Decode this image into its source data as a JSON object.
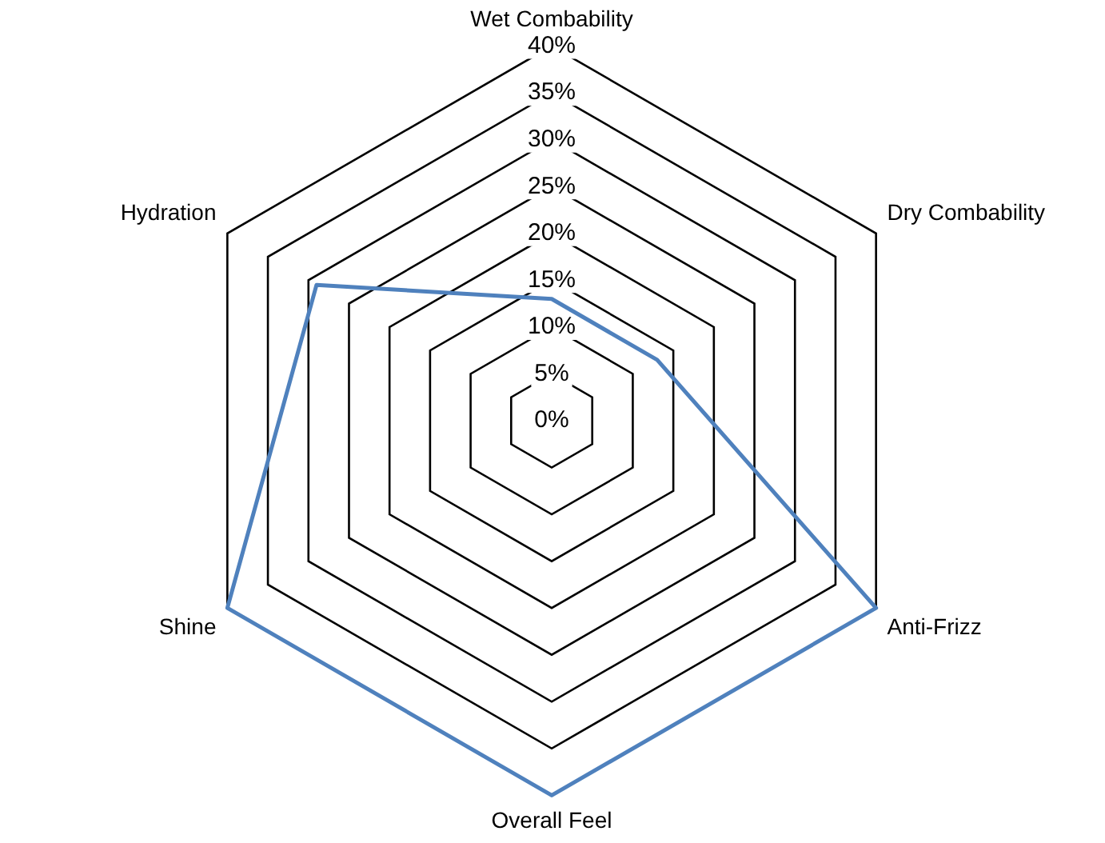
{
  "chart_data": {
    "type": "radar",
    "categories": [
      "Wet Combability",
      "Dry Combability",
      "Anti-Frizz",
      "Overall Feel",
      "Shine",
      "Hydration"
    ],
    "series": [
      {
        "color": "#4f81bd",
        "values": [
          13,
          13,
          40,
          40,
          40,
          29
        ]
      }
    ],
    "ylim": [
      0,
      40
    ],
    "yticks": [
      {
        "value": 0,
        "label": "0%"
      },
      {
        "value": 5,
        "label": "5%"
      },
      {
        "value": 10,
        "label": "10%"
      },
      {
        "value": 15,
        "label": "15%"
      },
      {
        "value": 20,
        "label": "20%"
      },
      {
        "value": 25,
        "label": "25%"
      },
      {
        "value": 30,
        "label": "30%"
      },
      {
        "value": 35,
        "label": "35%"
      },
      {
        "value": 40,
        "label": "40%"
      }
    ],
    "grid": true,
    "legend": false,
    "marker": "none",
    "line_style": "solid"
  }
}
